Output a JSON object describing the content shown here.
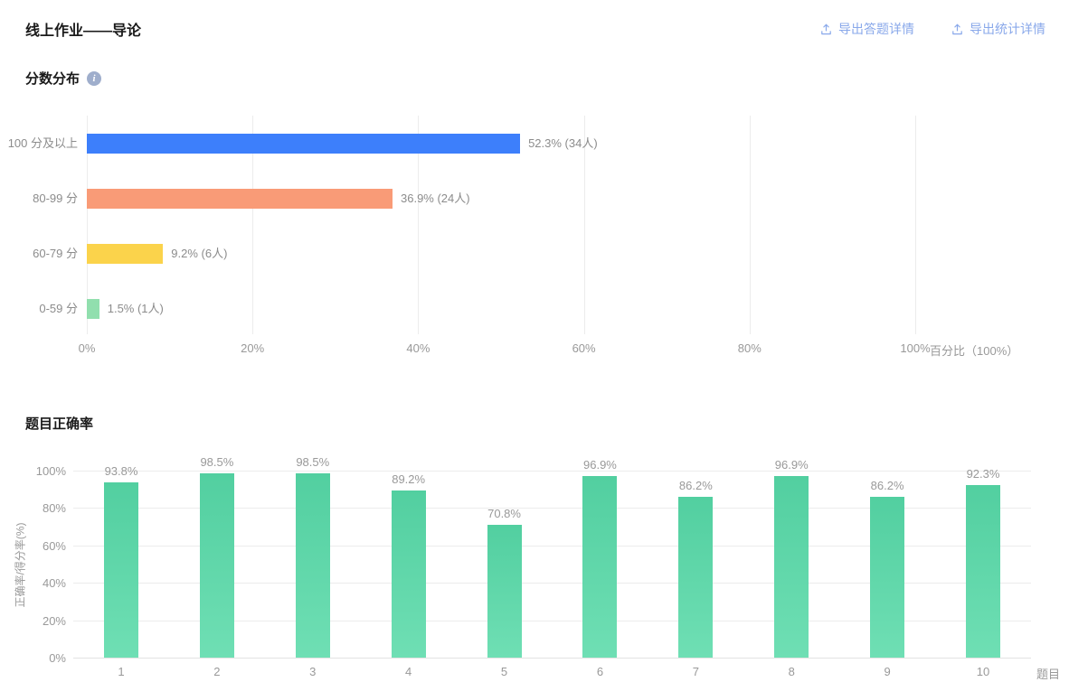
{
  "header": {
    "title": "线上作业——导论",
    "export_answers_label": "导出答题详情",
    "export_stats_label": "导出统计详情"
  },
  "sections": {
    "score_title": "分数分布",
    "question_title": "题目正确率"
  },
  "icons": {
    "export": "upload-icon",
    "info": "info-icon"
  },
  "chart_data": [
    {
      "type": "bar",
      "orientation": "horizontal",
      "title": "分数分布",
      "categories": [
        "100 分及以上",
        "80-99 分",
        "60-79 分",
        "0-59 分"
      ],
      "values": [
        52.3,
        36.9,
        9.2,
        1.5
      ],
      "value_labels": [
        "52.3% (34人)",
        "36.9% (24人)",
        "9.2% (6人)",
        "1.5% (1人)"
      ],
      "bar_colors": [
        "#3D7FFB",
        "#F99B77",
        "#FBD34B",
        "#91DFAE"
      ],
      "x_ticks": [
        "0%",
        "20%",
        "40%",
        "60%",
        "80%",
        "100%"
      ],
      "xlim": [
        0,
        100
      ],
      "xlabel": "百分比（100%）",
      "grid": true,
      "legend": false
    },
    {
      "type": "bar",
      "orientation": "vertical",
      "title": "题目正确率",
      "categories": [
        "1",
        "2",
        "3",
        "4",
        "5",
        "6",
        "7",
        "8",
        "9",
        "10"
      ],
      "values": [
        93.8,
        98.5,
        98.5,
        89.2,
        70.8,
        96.9,
        86.2,
        96.9,
        86.2,
        92.3
      ],
      "value_labels": [
        "93.8%",
        "98.5%",
        "98.5%",
        "89.2%",
        "70.8%",
        "96.9%",
        "86.2%",
        "96.9%",
        "86.2%",
        "92.3%"
      ],
      "bar_gradient": [
        "#52CFA0",
        "#6FDFB4"
      ],
      "y_ticks": [
        "0%",
        "20%",
        "40%",
        "60%",
        "80%",
        "100%"
      ],
      "ylim": [
        0,
        100
      ],
      "ylabel": "正确率/得分率(%)",
      "xlabel": "题目",
      "grid": true,
      "legend": false
    }
  ]
}
